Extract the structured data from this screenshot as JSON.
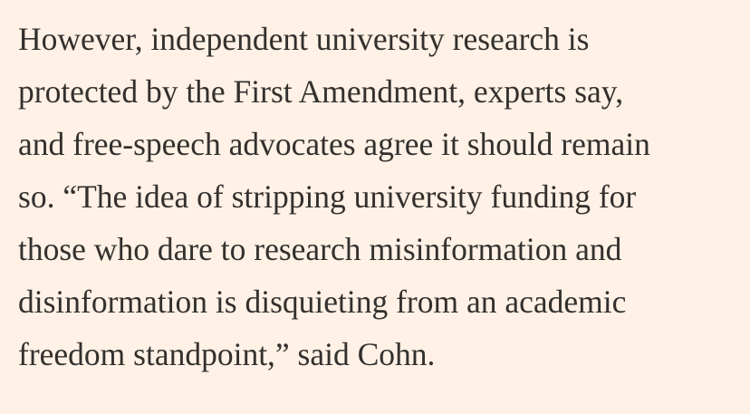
{
  "article": {
    "paragraph_lines": [
      "However, independent university research is",
      "protected by the First Amendment, experts say,",
      "and free-speech advocates agree it should remain",
      "so. “The idea of stripping university funding for",
      "those who dare to research misinformation and",
      "disinformation is disquieting from an academic",
      "freedom standpoint,” said Cohn."
    ]
  },
  "colors": {
    "background": "#fff1e5",
    "text": "#33302e"
  }
}
